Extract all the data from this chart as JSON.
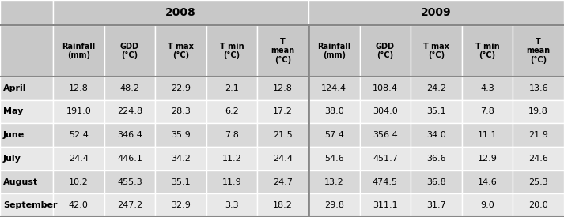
{
  "year_headers": [
    "2008",
    "2009"
  ],
  "col_headers_line1": [
    "Rainfall",
    "GDD",
    "T max",
    "T min",
    "T"
  ],
  "col_headers_line2": [
    "(mm)",
    "(°C)",
    "(°C)",
    "(°C)",
    "mean"
  ],
  "col_headers_line3": [
    "",
    "",
    "",
    "",
    "(°C)"
  ],
  "row_labels": [
    "April",
    "May",
    "June",
    "July",
    "August",
    "September"
  ],
  "data_2008": [
    [
      "12.8",
      "48.2",
      "22.9",
      "2.1",
      "12.8"
    ],
    [
      "191.0",
      "224.8",
      "28.3",
      "6.2",
      "17.2"
    ],
    [
      "52.4",
      "346.4",
      "35.9",
      "7.8",
      "21.5"
    ],
    [
      "24.4",
      "446.1",
      "34.2",
      "11.2",
      "24.4"
    ],
    [
      "10.2",
      "455.3",
      "35.1",
      "11.9",
      "24.7"
    ],
    [
      "42.0",
      "247.2",
      "32.9",
      "3.3",
      "18.2"
    ]
  ],
  "data_2009": [
    [
      "124.4",
      "108.4",
      "24.2",
      "4.3",
      "13.6"
    ],
    [
      "38.0",
      "304.0",
      "35.1",
      "7.8",
      "19.8"
    ],
    [
      "57.4",
      "356.4",
      "34.0",
      "11.1",
      "21.9"
    ],
    [
      "54.6",
      "451.7",
      "36.6",
      "12.9",
      "24.6"
    ],
    [
      "13.2",
      "474.5",
      "36.8",
      "14.6",
      "25.3"
    ],
    [
      "29.8",
      "311.1",
      "31.7",
      "9.0",
      "20.0"
    ]
  ],
  "header_bg": "#c8c8c8",
  "row_bg_light": "#d8d8d8",
  "row_bg_dark": "#e8e8e8",
  "divider_color": "#888888",
  "border_color": "#888888",
  "year_fontsize": 10,
  "col_header_fontsize": 7,
  "data_fontsize": 8,
  "row_label_fontsize": 8,
  "fig_width": 7.13,
  "fig_height": 2.75,
  "dpi": 100
}
